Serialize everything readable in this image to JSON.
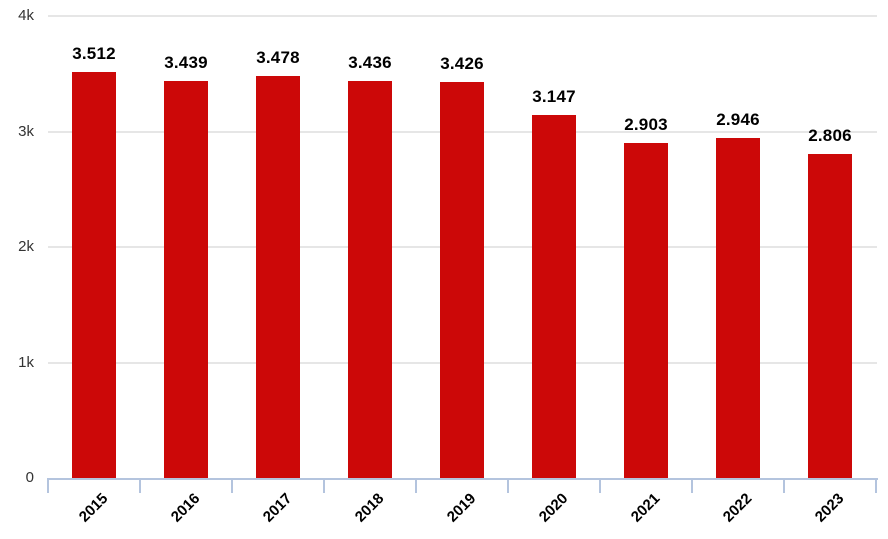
{
  "chart_data": {
    "type": "bar",
    "title": "",
    "xlabel": "",
    "ylabel": "",
    "categories": [
      "2015",
      "2016",
      "2017",
      "2018",
      "2019",
      "2020",
      "2021",
      "2022",
      "2023"
    ],
    "values": [
      3512,
      3439,
      3478,
      3436,
      3426,
      3147,
      2903,
      2946,
      2806
    ],
    "value_labels": [
      "3.512",
      "3.439",
      "3.478",
      "3.436",
      "3.426",
      "3.147",
      "2.903",
      "2.946",
      "2.806"
    ],
    "y_tick_labels": [
      "4k",
      "3k",
      "2k",
      "1k",
      "0"
    ],
    "ylim": [
      0,
      4000
    ],
    "grid": true,
    "legend": false,
    "colors": {
      "bar": "#cc0808",
      "axis": "#b4c4de",
      "gridline": "#e6e6e6",
      "value_label": "#000000",
      "x_tick_label": "#000000",
      "y_tick_label": "#333333",
      "background": "#ffffff"
    }
  }
}
